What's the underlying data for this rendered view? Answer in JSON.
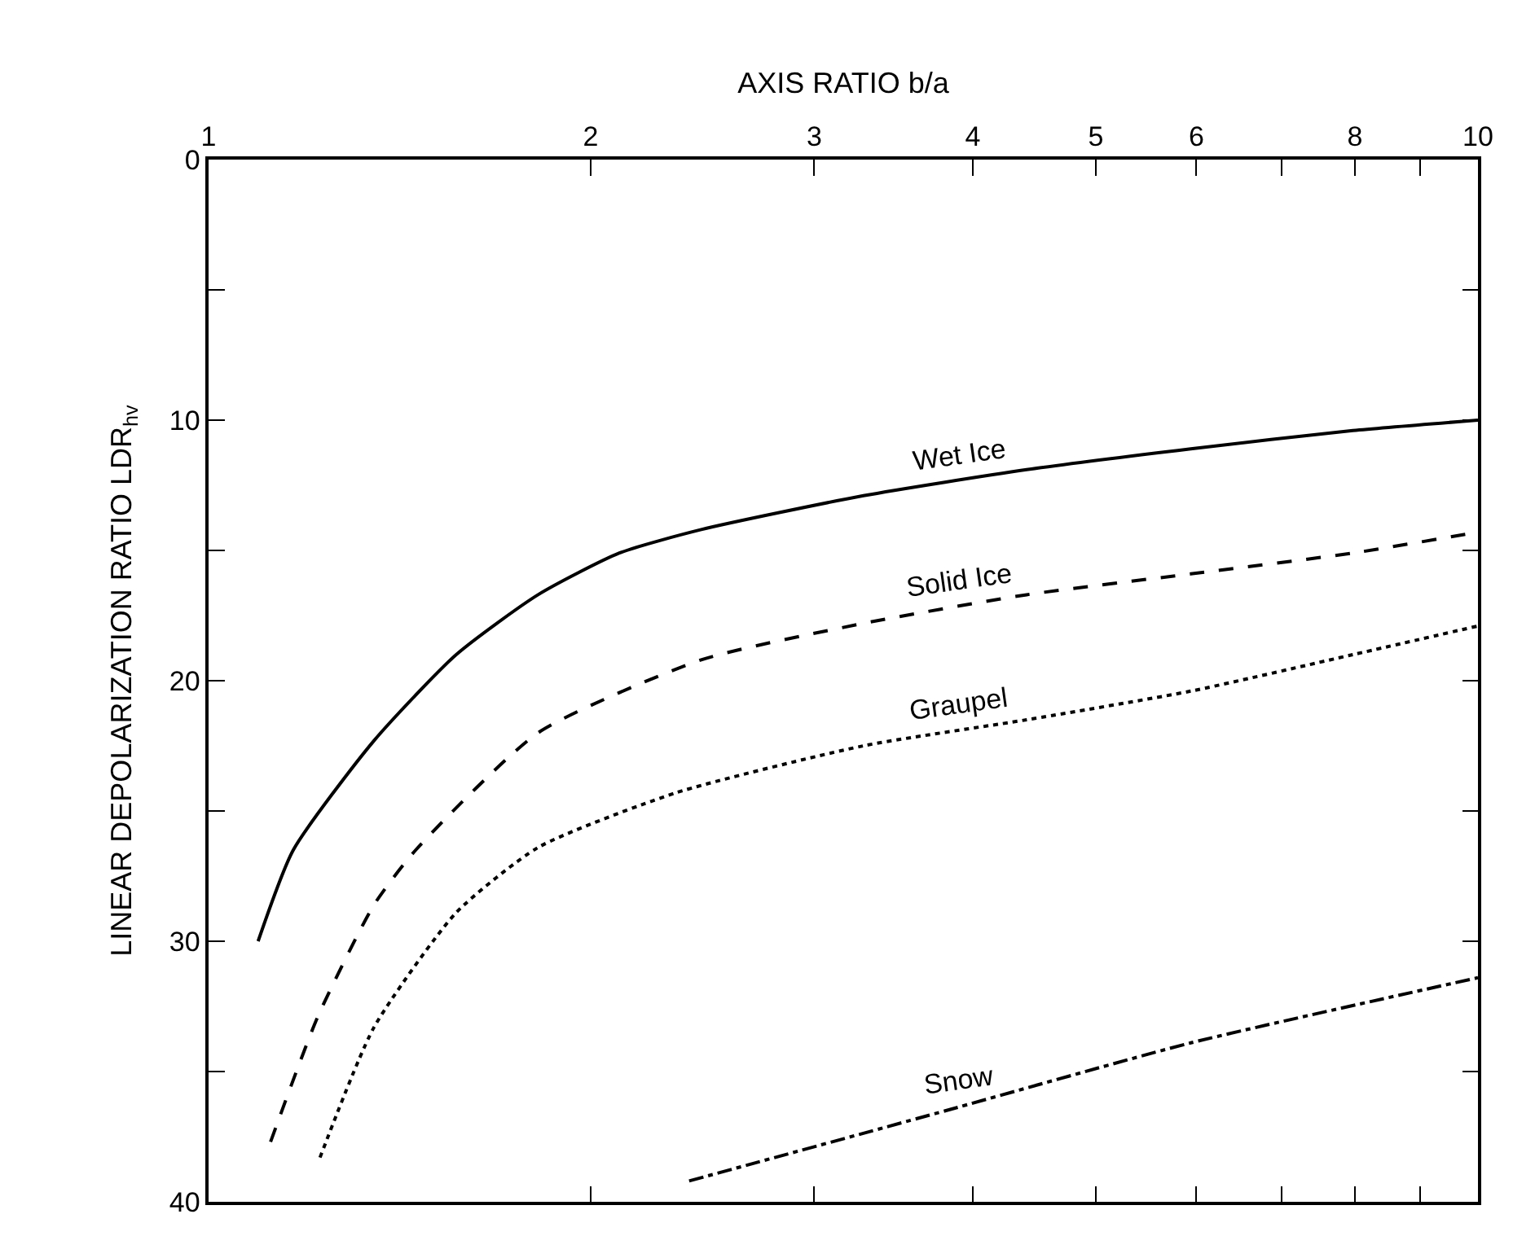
{
  "chart_data": {
    "type": "line",
    "xlabel": "AXIS RATIO b/a",
    "ylabel": "LINEAR DEPOLARIZATION RATIO LDR$_{hv}$",
    "log": "x",
    "xlim": [
      1,
      10
    ],
    "xticks": [
      1,
      2,
      3,
      4,
      5,
      6,
      {
        "value": 7,
        "label": null
      },
      8,
      {
        "value": 9,
        "label": null
      },
      10
    ],
    "ylim": [
      40,
      0
    ],
    "yticks": [
      0,
      {
        "value": 5,
        "label": null
      },
      10,
      {
        "value": 15,
        "label": null
      },
      20,
      {
        "value": 25,
        "label": null
      },
      30,
      {
        "value": 35,
        "label": null
      },
      40
    ],
    "grid": false,
    "legend": false,
    "marker": "none",
    "series": [
      {
        "name": "Wet Ice",
        "color": "#000000",
        "line_style": "solid",
        "x": [
          1.094,
          1.166,
          1.35,
          1.567,
          1.818,
          2.107,
          2.444,
          3.28,
          4.41,
          5.94,
          7.97,
          10
        ],
        "values": [
          30.0,
          26.5,
          22.3,
          19.0,
          16.7,
          15.1,
          14.2,
          12.9,
          11.9,
          11.1,
          10.4,
          10.0
        ]
      },
      {
        "name": "Solid Ice",
        "color": "#000000",
        "line_style": "dashed",
        "x": [
          1.119,
          1.219,
          1.35,
          1.456,
          1.818,
          2.444,
          3.28,
          4.41,
          5.94,
          7.97,
          10
        ],
        "values": [
          37.7,
          32.9,
          28.6,
          26.5,
          22.0,
          19.2,
          17.8,
          16.7,
          15.9,
          15.1,
          14.3
        ]
      },
      {
        "name": "Graupel",
        "color": "#000000",
        "line_style": "dotted",
        "x": [
          1.224,
          1.35,
          1.567,
          1.818,
          2.335,
          3.28,
          4.41,
          5.94,
          7.97,
          10
        ],
        "values": [
          38.3,
          33.3,
          28.9,
          26.4,
          24.3,
          22.5,
          21.5,
          20.4,
          19.0,
          17.9
        ]
      },
      {
        "name": "Snow",
        "color": "#000000",
        "line_style": "dashdot",
        "x": [
          2.391,
          3.81,
          5.94,
          10
        ],
        "values": [
          39.2,
          36.5,
          33.9,
          31.4
        ]
      }
    ]
  }
}
